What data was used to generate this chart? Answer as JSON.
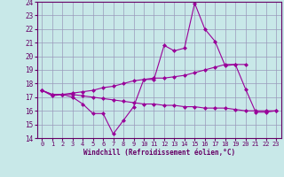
{
  "x_values": [
    0,
    1,
    2,
    3,
    4,
    5,
    6,
    7,
    8,
    9,
    10,
    11,
    12,
    13,
    14,
    15,
    16,
    17,
    18,
    19,
    20,
    21,
    22,
    23
  ],
  "line1": [
    17.5,
    17.1,
    17.2,
    17.0,
    16.5,
    15.8,
    15.8,
    14.3,
    15.3,
    16.3,
    18.3,
    18.3,
    20.8,
    20.4,
    20.6,
    23.9,
    22.0,
    21.1,
    19.3,
    19.4,
    17.6,
    15.9,
    15.9,
    16.0
  ],
  "line2": [
    17.5,
    17.2,
    17.2,
    17.3,
    17.4,
    17.5,
    17.7,
    17.8,
    18.0,
    18.2,
    18.3,
    18.4,
    18.4,
    18.5,
    18.6,
    18.8,
    19.0,
    19.2,
    19.4,
    19.4,
    19.4,
    null,
    null,
    null
  ],
  "line3": [
    17.5,
    17.2,
    17.2,
    17.2,
    17.1,
    17.0,
    16.9,
    16.8,
    16.7,
    16.6,
    16.5,
    16.5,
    16.4,
    16.4,
    16.3,
    16.3,
    16.2,
    16.2,
    16.2,
    16.1,
    16.0,
    16.0,
    16.0,
    16.0
  ],
  "line_color": "#990099",
  "bg_color": "#c8e8e8",
  "grid_color": "#9999bb",
  "xlabel": "Windchill (Refroidissement éolien,°C)",
  "xlabel_color": "#660066",
  "tick_color": "#660066",
  "xlim": [
    -0.5,
    23.5
  ],
  "ylim": [
    14,
    24
  ],
  "yticks": [
    14,
    15,
    16,
    17,
    18,
    19,
    20,
    21,
    22,
    23,
    24
  ],
  "xticks": [
    0,
    1,
    2,
    3,
    4,
    5,
    6,
    7,
    8,
    9,
    10,
    11,
    12,
    13,
    14,
    15,
    16,
    17,
    18,
    19,
    20,
    21,
    22,
    23
  ],
  "marker": "D",
  "markersize": 2.0,
  "linewidth": 0.8
}
